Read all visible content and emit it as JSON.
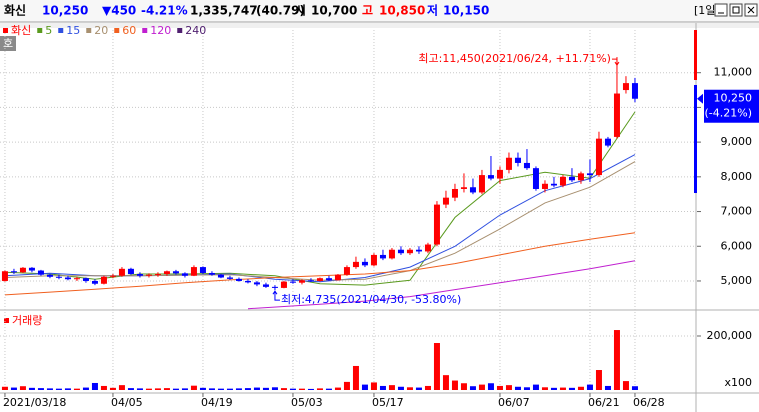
{
  "header": {
    "name": "화신",
    "price": "10,250",
    "change": "▼450",
    "change_pct": "-4.21%",
    "volume": "1,335,747",
    "volume_ratio": "(40.79)",
    "open_label": "시",
    "open": "10,700",
    "high_label": "고",
    "high": "10,850",
    "low_label": "저",
    "low": "10,150",
    "period": "[1일]"
  },
  "chart_data": [
    {
      "type": "candlestick",
      "title": "화신",
      "up_color": "#ff0000",
      "down_color": "#0000ff",
      "open": [
        5000,
        5280,
        5250,
        5380,
        5300,
        5180,
        5120,
        5100,
        5050,
        5080,
        5000,
        4920,
        5120,
        5150,
        5350,
        5200,
        5150,
        5180,
        5200,
        5280,
        5220,
        5150,
        5400,
        5230,
        5180,
        5100,
        5060,
        5000,
        4960,
        4900,
        4830,
        4800,
        4980,
        4950,
        5020,
        5000,
        5080,
        5020,
        5180,
        5400,
        5550,
        5450,
        5750,
        5650,
        5900,
        5800,
        5900,
        5850,
        6050,
        7200,
        7400,
        7650,
        7700,
        7550,
        8050,
        7950,
        8200,
        8550,
        8400,
        8250,
        7650,
        7800,
        7750,
        8000,
        7900,
        8100,
        8050,
        9100,
        9150,
        10500,
        10700
      ],
      "high": [
        5300,
        5350,
        5400,
        5400,
        5320,
        5200,
        5180,
        5150,
        5120,
        5100,
        5050,
        5150,
        5200,
        5400,
        5380,
        5250,
        5220,
        5250,
        5300,
        5320,
        5250,
        5450,
        5420,
        5280,
        5200,
        5150,
        5100,
        5050,
        5000,
        4950,
        4880,
        5000,
        5050,
        5050,
        5080,
        5100,
        5150,
        5200,
        5450,
        5700,
        5650,
        5800,
        5900,
        5950,
        6000,
        5950,
        6000,
        6100,
        7300,
        7600,
        7800,
        8100,
        7950,
        8200,
        8600,
        8300,
        8700,
        8700,
        8800,
        8300,
        7900,
        8000,
        8050,
        8250,
        8150,
        8500,
        9300,
        9150,
        11450,
        10900,
        10850
      ],
      "low": [
        4980,
        5200,
        5230,
        5250,
        5150,
        5080,
        5050,
        5020,
        5000,
        4950,
        4880,
        4900,
        5080,
        5120,
        5180,
        5100,
        5100,
        5120,
        5150,
        5180,
        5100,
        5140,
        5200,
        5150,
        5080,
        5030,
        4980,
        4930,
        4850,
        4800,
        4735,
        4790,
        4920,
        4900,
        4970,
        4980,
        5000,
        5010,
        5150,
        5350,
        5400,
        5420,
        5600,
        5620,
        5750,
        5750,
        5780,
        5800,
        6000,
        7100,
        7300,
        7550,
        7500,
        7500,
        7900,
        7800,
        8100,
        8300,
        8200,
        7600,
        7550,
        7700,
        7700,
        7850,
        7800,
        7850,
        8000,
        8850,
        9100,
        10400,
        10150
      ],
      "close": [
        5280,
        5250,
        5380,
        5300,
        5180,
        5120,
        5100,
        5050,
        5080,
        5000,
        4920,
        5120,
        5150,
        5350,
        5200,
        5150,
        5180,
        5200,
        5280,
        5220,
        5150,
        5400,
        5230,
        5180,
        5100,
        5060,
        5000,
        4960,
        4900,
        4830,
        4800,
        4980,
        4950,
        5020,
        5000,
        5080,
        5020,
        5180,
        5400,
        5550,
        5450,
        5750,
        5650,
        5900,
        5800,
        5900,
        5850,
        6050,
        7200,
        7400,
        7650,
        7700,
        7550,
        8050,
        7950,
        8200,
        8550,
        8400,
        8250,
        7650,
        7800,
        7750,
        8000,
        7900,
        8100,
        8050,
        9100,
        8900,
        10400,
        10700,
        10250
      ],
      "series": [
        {
          "name": "5",
          "color": "#5a9a1e",
          "x": [
            0,
            5,
            10,
            15,
            20,
            25,
            30,
            35,
            40,
            45,
            50,
            55,
            60,
            65,
            70
          ],
          "values": [
            5250,
            5200,
            5050,
            5200,
            5200,
            5220,
            5150,
            4920,
            4880,
            5020,
            6830,
            7890,
            8130,
            7960,
            9870
          ]
        },
        {
          "name": "15",
          "color": "#3050e0",
          "x": [
            0,
            5,
            10,
            15,
            20,
            25,
            30,
            35,
            40,
            45,
            50,
            55,
            60,
            65,
            70
          ],
          "values": [
            5150,
            5220,
            5150,
            5150,
            5170,
            5200,
            5050,
            4980,
            5100,
            5400,
            6000,
            6900,
            7600,
            7950,
            8640
          ]
        },
        {
          "name": "20",
          "color": "#a89070",
          "x": [
            0,
            5,
            10,
            15,
            20,
            25,
            30,
            35,
            40,
            45,
            50,
            55,
            60,
            65,
            70
          ],
          "values": [
            5100,
            5150,
            5150,
            5150,
            5170,
            5180,
            5100,
            5020,
            5050,
            5300,
            5800,
            6500,
            7250,
            7700,
            8440
          ]
        },
        {
          "name": "60",
          "color": "#f06020",
          "x": [
            0,
            5,
            10,
            15,
            20,
            25,
            30,
            35,
            40,
            45,
            50,
            55,
            60,
            65,
            70
          ],
          "values": [
            4600,
            4680,
            4760,
            4850,
            4950,
            5030,
            5100,
            5150,
            5200,
            5300,
            5500,
            5750,
            6000,
            6200,
            6390
          ]
        },
        {
          "name": "120",
          "color": "#c020d0",
          "x": [
            27,
            35,
            40,
            45,
            50,
            55,
            60,
            65,
            70
          ],
          "values": [
            4200,
            4330,
            4420,
            4550,
            4750,
            4950,
            5150,
            5350,
            5580
          ]
        },
        {
          "name": "240",
          "color": "#502070",
          "x": [],
          "values": []
        }
      ],
      "xlim": [
        -0.55,
        76.67
      ],
      "xticks": [
        {
          "value": 0,
          "label": "2021/03/18"
        },
        {
          "value": 12,
          "label": "04/05"
        },
        {
          "value": 22,
          "label": "04/19"
        },
        {
          "value": 32,
          "label": "05/03"
        },
        {
          "value": 41,
          "label": "05/17"
        },
        {
          "value": 55,
          "label": "06/07"
        },
        {
          "value": 65,
          "label": "06/21"
        },
        {
          "value": 70,
          "label": "06/28"
        }
      ],
      "ylim": [
        4250,
        12230
      ],
      "yticks": [
        {
          "value": 5000,
          "label": "5,000"
        },
        {
          "value": 6000,
          "label": "6,000"
        },
        {
          "value": 7000,
          "label": "7,000"
        },
        {
          "value": 8000,
          "label": "8,000"
        },
        {
          "value": 9000,
          "label": "9,000"
        },
        {
          "value": 10000,
          "label": "10,000"
        },
        {
          "value": 11000,
          "label": "11,000"
        }
      ],
      "grid": true,
      "annotations": {
        "max": "최고:11,450(2021/06/24, +11.71%)",
        "min": "최저:4,735(2021/04/30, -53.80%)"
      },
      "last_price": {
        "value": 10250,
        "label": "10,250",
        "change": "(-4.21%)"
      }
    },
    {
      "type": "bar",
      "title": "거래량",
      "values": [
        12000,
        9000,
        14000,
        8000,
        7000,
        6000,
        5000,
        6000,
        5000,
        9000,
        26000,
        15000,
        8000,
        18000,
        7000,
        6000,
        5000,
        6000,
        7000,
        5000,
        6000,
        16000,
        8000,
        6000,
        5000,
        5000,
        6000,
        7000,
        9000,
        8000,
        10000,
        7000,
        5000,
        5000,
        4000,
        6000,
        5000,
        9000,
        30000,
        89000,
        20000,
        28000,
        15000,
        18000,
        12000,
        10000,
        9000,
        15000,
        174000,
        55000,
        35000,
        25000,
        14000,
        20000,
        25000,
        15000,
        18000,
        12000,
        10000,
        20000,
        10000,
        8000,
        9000,
        8000,
        12000,
        20000,
        74000,
        15000,
        222000,
        33000,
        14000
      ],
      "ylim": [
        0,
        274000
      ],
      "yticks": [
        {
          "value": 200000,
          "label": "200,000"
        }
      ],
      "unit_label": "x100"
    }
  ]
}
